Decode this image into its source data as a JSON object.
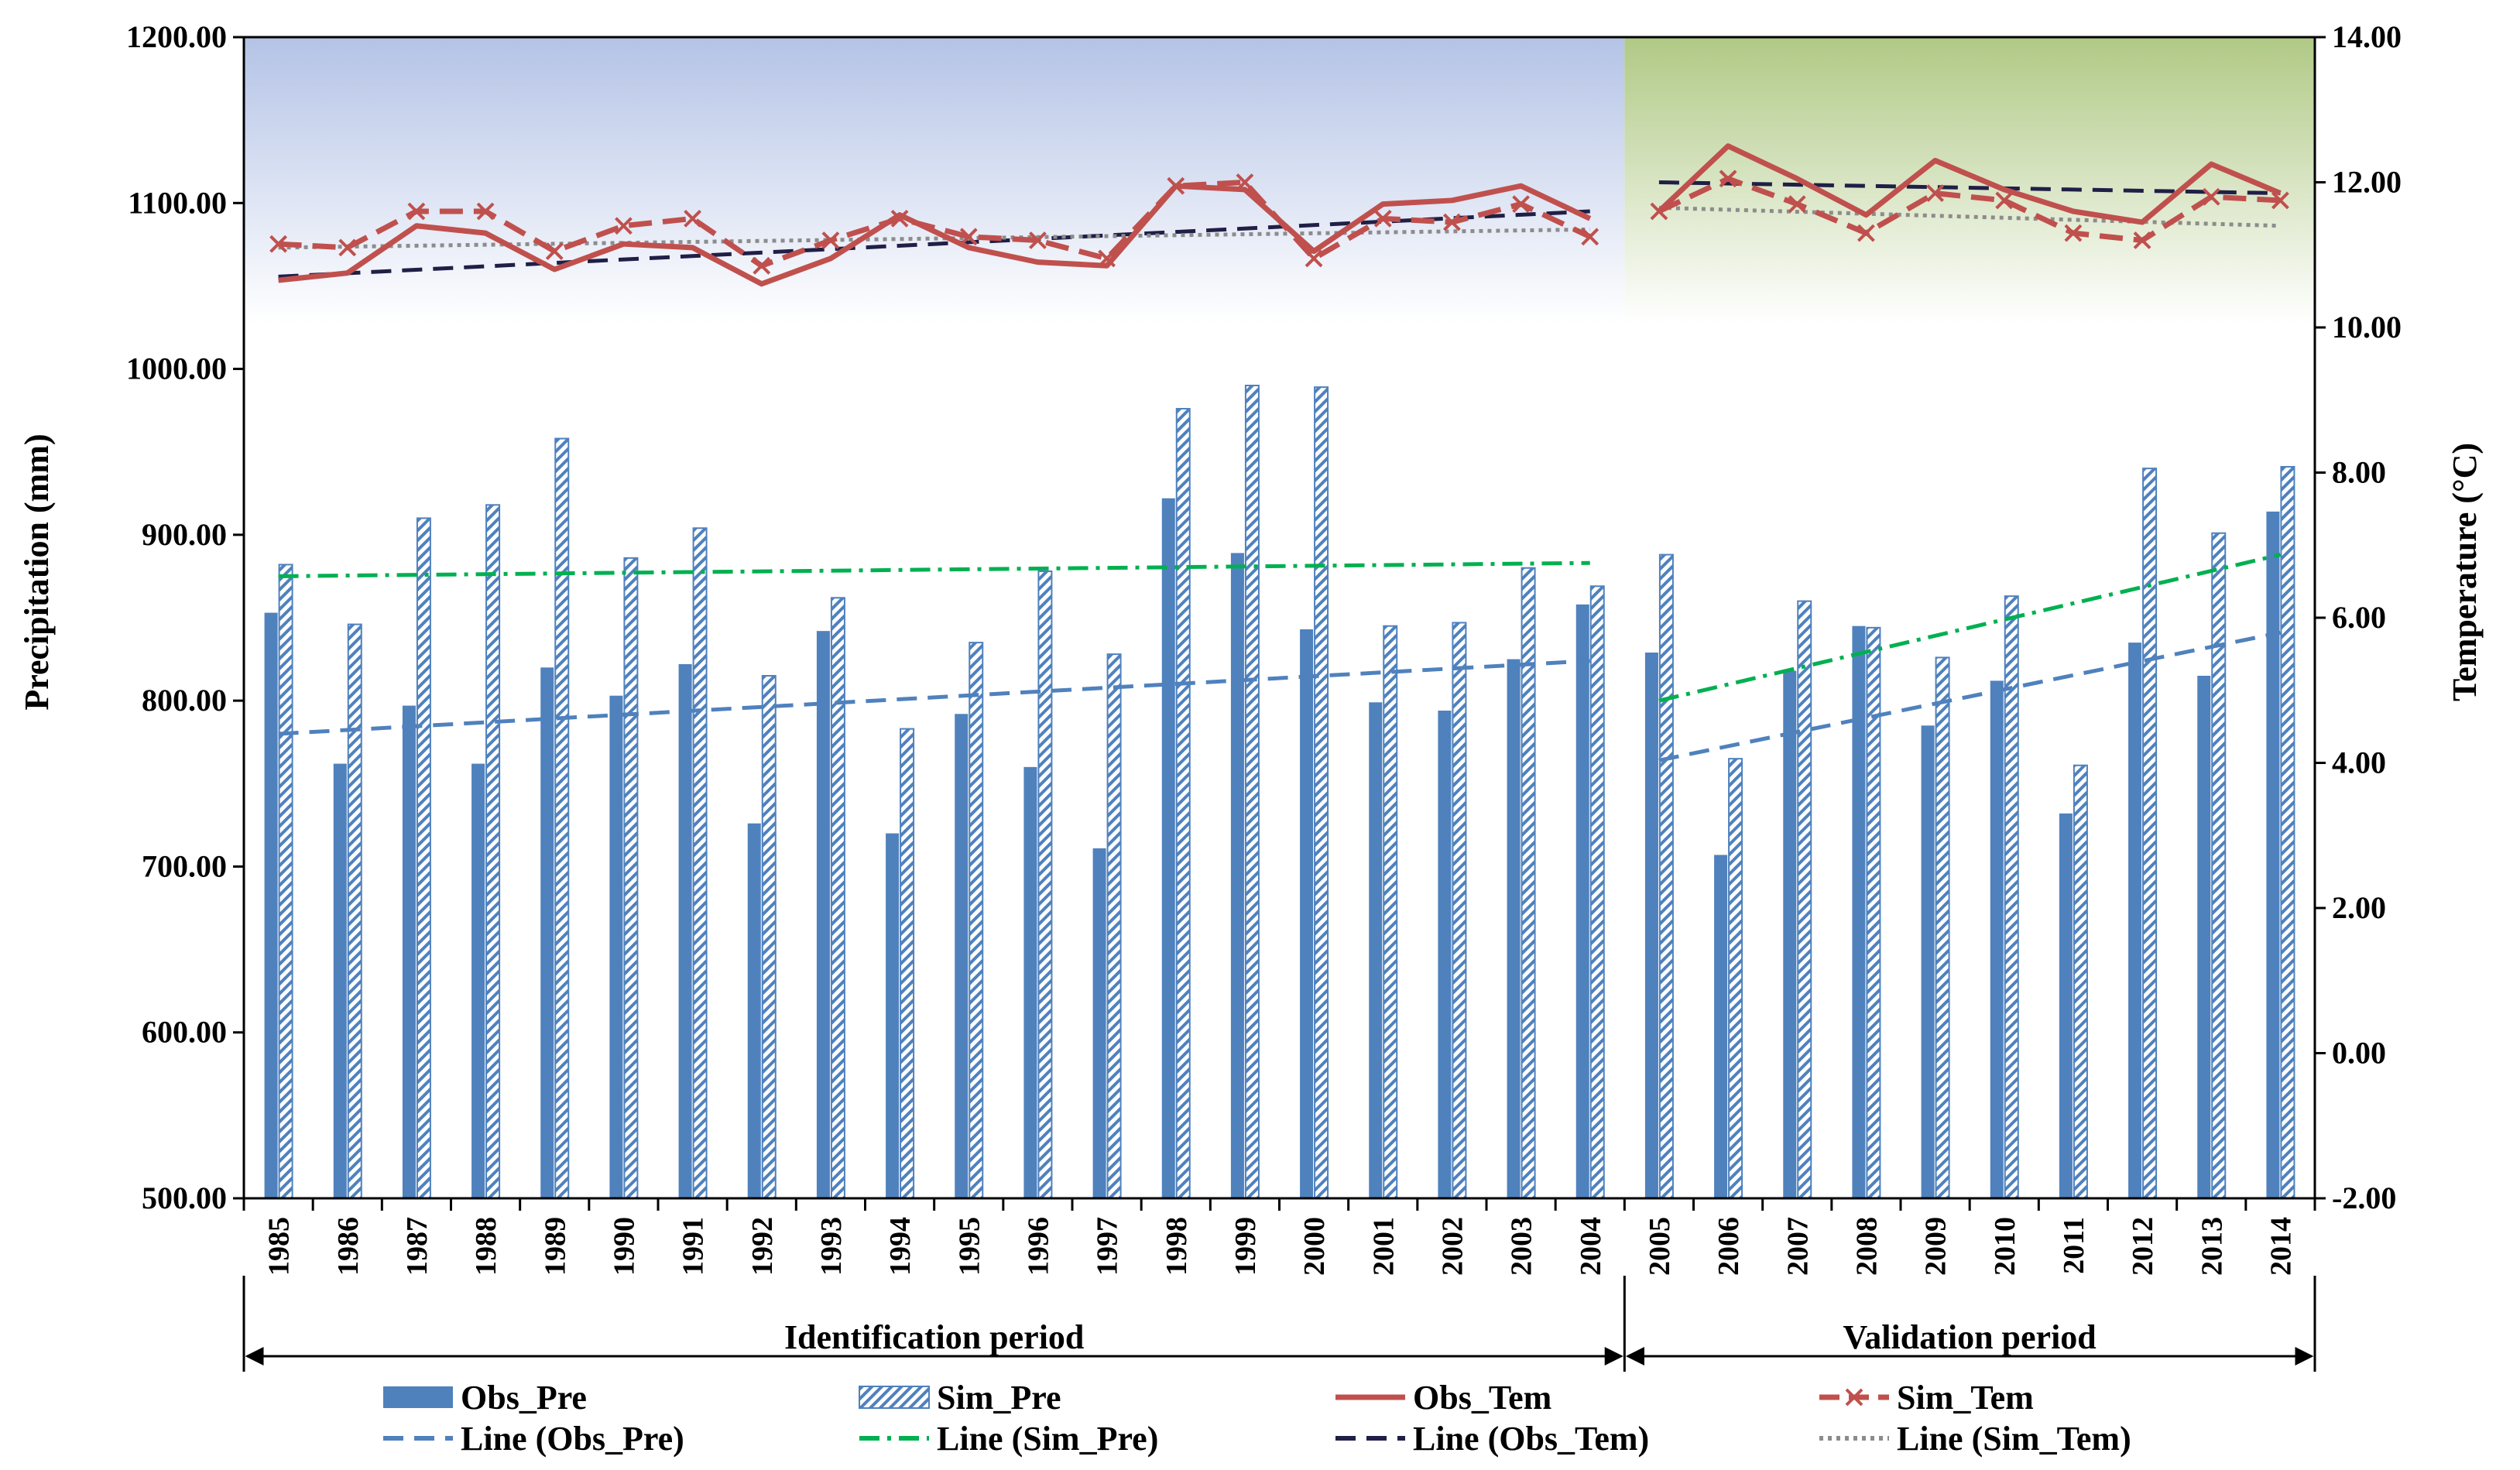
{
  "chart_data": {
    "type": "bar",
    "categories": [
      "1985",
      "1986",
      "1987",
      "1988",
      "1989",
      "1990",
      "1991",
      "1992",
      "1993",
      "1994",
      "1995",
      "1996",
      "1997",
      "1998",
      "1999",
      "2000",
      "2001",
      "2002",
      "2003",
      "2004",
      "2005",
      "2006",
      "2007",
      "2008",
      "2009",
      "2010",
      "2011",
      "2012",
      "2013",
      "2014"
    ],
    "ylabel": "Precipitation (mm)",
    "y2label": "Temperature (°C)",
    "ylim": [
      500,
      1200
    ],
    "y2lim": [
      -2,
      14
    ],
    "yticks": [
      "500.00",
      "600.00",
      "700.00",
      "800.00",
      "900.00",
      "1000.00",
      "1100.00",
      "1200.00"
    ],
    "y2ticks": [
      "-2.00",
      "0.00",
      "2.00",
      "4.00",
      "6.00",
      "8.00",
      "10.00",
      "12.00",
      "14.00"
    ],
    "periods": [
      {
        "name": "Identification period",
        "start": "1985",
        "end": "2004",
        "bg_top": "#b4c3e6",
        "bg_bottom": "#ffffff"
      },
      {
        "name": "Validation period",
        "start": "2005",
        "end": "2014",
        "bg_top": "#b0c985",
        "bg_bottom": "#ffffff"
      }
    ],
    "series": [
      {
        "name": "Obs_Pre",
        "kind": "bar",
        "axis": "left",
        "color": "#4f81bd",
        "values": [
          853,
          762,
          797,
          762,
          820,
          803,
          822,
          726,
          842,
          720,
          792,
          760,
          711,
          922,
          889,
          843,
          799,
          794,
          825,
          858,
          829,
          707,
          818,
          845,
          785,
          812,
          732,
          835,
          815,
          914
        ]
      },
      {
        "name": "Sim_Pre",
        "kind": "bar-hatched",
        "axis": "left",
        "color": "#4f81bd",
        "values": [
          882,
          846,
          910,
          918,
          958,
          886,
          904,
          815,
          862,
          783,
          835,
          878,
          828,
          976,
          990,
          989,
          845,
          847,
          880,
          869,
          888,
          765,
          860,
          844,
          826,
          863,
          761,
          940,
          901,
          941
        ]
      },
      {
        "name": "Obs_Tem",
        "kind": "line",
        "axis": "right",
        "color": "#c0504d",
        "values": [
          10.65,
          10.75,
          11.4,
          11.3,
          10.8,
          11.15,
          11.1,
          10.6,
          10.95,
          11.55,
          11.1,
          10.9,
          10.85,
          11.95,
          11.9,
          11.05,
          11.7,
          11.75,
          11.95,
          11.5,
          11.6,
          12.5,
          12.05,
          11.55,
          12.3,
          11.9,
          11.6,
          11.45,
          12.25,
          11.85
        ]
      },
      {
        "name": "Sim_Tem",
        "kind": "line-marker",
        "axis": "right",
        "color": "#c0504d",
        "values": [
          11.15,
          11.1,
          11.6,
          11.6,
          11.05,
          11.4,
          11.5,
          10.85,
          11.2,
          11.5,
          11.25,
          11.2,
          10.95,
          11.95,
          12.0,
          10.95,
          11.5,
          11.45,
          11.7,
          11.25,
          11.6,
          12.05,
          11.7,
          11.3,
          11.85,
          11.75,
          11.3,
          11.2,
          11.8,
          11.75
        ]
      },
      {
        "name": "Line (Obs_Pre)",
        "kind": "trend",
        "axis": "left",
        "color": "#4f81bd",
        "dash": "dashed",
        "segments": [
          {
            "from": "1985",
            "to": "2004",
            "y0": 780,
            "y1": 824
          },
          {
            "from": "2005",
            "to": "2014",
            "y0": 764,
            "y1": 841
          }
        ]
      },
      {
        "name": "Line (Sim_Pre)",
        "kind": "trend",
        "axis": "left",
        "color": "#00b050",
        "dash": "dash-dot",
        "segments": [
          {
            "from": "1985",
            "to": "2004",
            "y0": 875,
            "y1": 883
          },
          {
            "from": "2005",
            "to": "2014",
            "y0": 800,
            "y1": 888
          }
        ]
      },
      {
        "name": "Line (Obs_Tem)",
        "kind": "trend",
        "axis": "right",
        "color": "#1f1f47",
        "dash": "dashed",
        "segments": [
          {
            "from": "1985",
            "to": "2004",
            "y0": 10.7,
            "y1": 11.6
          },
          {
            "from": "2005",
            "to": "2014",
            "y0": 12.0,
            "y1": 11.85
          }
        ]
      },
      {
        "name": "Line (Sim_Tem)",
        "kind": "trend",
        "axis": "right",
        "color": "#8c8c8c",
        "dash": "dotted",
        "segments": [
          {
            "from": "1985",
            "to": "2004",
            "y0": 11.1,
            "y1": 11.35
          },
          {
            "from": "2005",
            "to": "2014",
            "y0": 11.65,
            "y1": 11.4
          }
        ]
      }
    ],
    "legend": [
      "Obs_Pre",
      "Sim_Pre",
      "Obs_Tem",
      "Sim_Tem",
      "Line (Obs_Pre)",
      "Line (Sim_Pre)",
      "Line (Obs_Tem)",
      "Line (Sim_Tem)"
    ]
  }
}
